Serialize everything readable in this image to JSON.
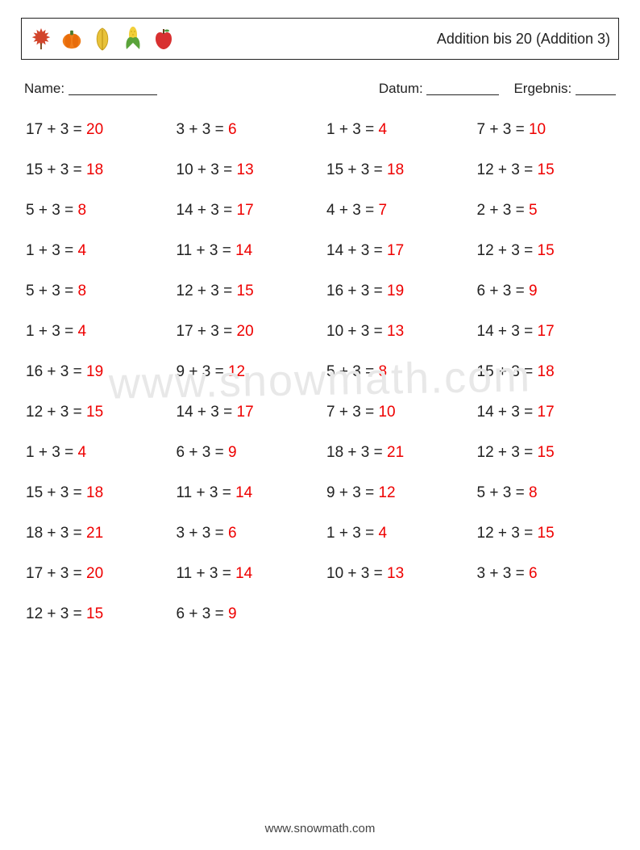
{
  "colors": {
    "text": "#222222",
    "answer": "#ee0000",
    "watermark": "#e8e8e8",
    "background": "#ffffff"
  },
  "header": {
    "title": "Addition bis 20 (Addition 3)",
    "icons": [
      "maple-leaf",
      "pumpkin",
      "yellow-leaf",
      "corn",
      "apple"
    ]
  },
  "meta": {
    "name_label": "Name:",
    "date_label": "Datum:",
    "result_label": "Ergebnis:"
  },
  "watermark": "www.snowmath.com",
  "footer": "www.snowmath.com",
  "problems": [
    {
      "a": 17,
      "b": 3,
      "ans": 20
    },
    {
      "a": 3,
      "b": 3,
      "ans": 6
    },
    {
      "a": 1,
      "b": 3,
      "ans": 4
    },
    {
      "a": 7,
      "b": 3,
      "ans": 10
    },
    {
      "a": 15,
      "b": 3,
      "ans": 18
    },
    {
      "a": 10,
      "b": 3,
      "ans": 13
    },
    {
      "a": 15,
      "b": 3,
      "ans": 18
    },
    {
      "a": 12,
      "b": 3,
      "ans": 15
    },
    {
      "a": 5,
      "b": 3,
      "ans": 8
    },
    {
      "a": 14,
      "b": 3,
      "ans": 17
    },
    {
      "a": 4,
      "b": 3,
      "ans": 7
    },
    {
      "a": 2,
      "b": 3,
      "ans": 5
    },
    {
      "a": 1,
      "b": 3,
      "ans": 4
    },
    {
      "a": 11,
      "b": 3,
      "ans": 14
    },
    {
      "a": 14,
      "b": 3,
      "ans": 17
    },
    {
      "a": 12,
      "b": 3,
      "ans": 15
    },
    {
      "a": 5,
      "b": 3,
      "ans": 8
    },
    {
      "a": 12,
      "b": 3,
      "ans": 15
    },
    {
      "a": 16,
      "b": 3,
      "ans": 19
    },
    {
      "a": 6,
      "b": 3,
      "ans": 9
    },
    {
      "a": 1,
      "b": 3,
      "ans": 4
    },
    {
      "a": 17,
      "b": 3,
      "ans": 20
    },
    {
      "a": 10,
      "b": 3,
      "ans": 13
    },
    {
      "a": 14,
      "b": 3,
      "ans": 17
    },
    {
      "a": 16,
      "b": 3,
      "ans": 19
    },
    {
      "a": 9,
      "b": 3,
      "ans": 12
    },
    {
      "a": 5,
      "b": 3,
      "ans": 8
    },
    {
      "a": 15,
      "b": 3,
      "ans": 18
    },
    {
      "a": 12,
      "b": 3,
      "ans": 15
    },
    {
      "a": 14,
      "b": 3,
      "ans": 17
    },
    {
      "a": 7,
      "b": 3,
      "ans": 10
    },
    {
      "a": 14,
      "b": 3,
      "ans": 17
    },
    {
      "a": 1,
      "b": 3,
      "ans": 4
    },
    {
      "a": 6,
      "b": 3,
      "ans": 9
    },
    {
      "a": 18,
      "b": 3,
      "ans": 21
    },
    {
      "a": 12,
      "b": 3,
      "ans": 15
    },
    {
      "a": 15,
      "b": 3,
      "ans": 18
    },
    {
      "a": 11,
      "b": 3,
      "ans": 14
    },
    {
      "a": 9,
      "b": 3,
      "ans": 12
    },
    {
      "a": 5,
      "b": 3,
      "ans": 8
    },
    {
      "a": 18,
      "b": 3,
      "ans": 21
    },
    {
      "a": 3,
      "b": 3,
      "ans": 6
    },
    {
      "a": 1,
      "b": 3,
      "ans": 4
    },
    {
      "a": 12,
      "b": 3,
      "ans": 15
    },
    {
      "a": 17,
      "b": 3,
      "ans": 20
    },
    {
      "a": 11,
      "b": 3,
      "ans": 14
    },
    {
      "a": 10,
      "b": 3,
      "ans": 13
    },
    {
      "a": 3,
      "b": 3,
      "ans": 6
    },
    {
      "a": 12,
      "b": 3,
      "ans": 15
    },
    {
      "a": 6,
      "b": 3,
      "ans": 9
    }
  ]
}
